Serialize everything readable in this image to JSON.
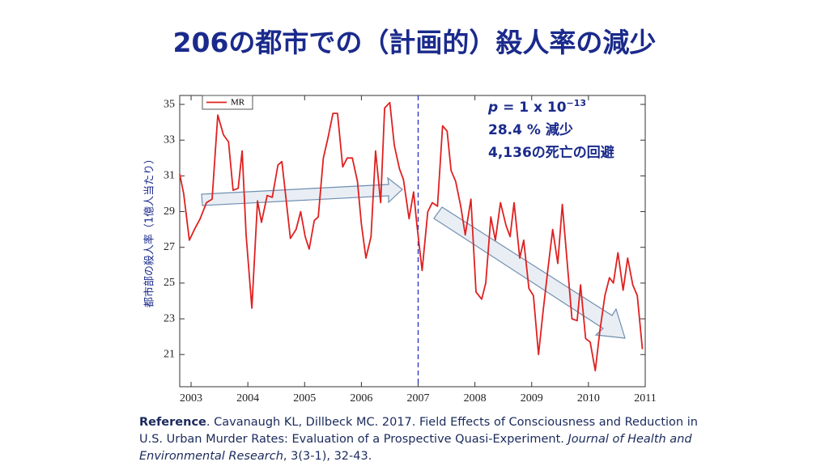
{
  "title": "206の都市での（計画的）殺人率の減少",
  "chart_data": {
    "type": "line",
    "y_label": "都市部の殺人率（1億人当たり）",
    "x": [
      2002.8,
      2002.87,
      2002.97,
      2003.06,
      2003.16,
      2003.27,
      2003.37,
      2003.47,
      2003.57,
      2003.66,
      2003.74,
      2003.83,
      2003.9,
      2003.97,
      2004.07,
      2004.17,
      2004.24,
      2004.34,
      2004.43,
      2004.53,
      2004.6,
      2004.67,
      2004.75,
      2004.85,
      2004.93,
      2005.01,
      2005.08,
      2005.17,
      2005.24,
      2005.33,
      2005.41,
      2005.5,
      2005.58,
      2005.67,
      2005.75,
      2005.84,
      2005.93,
      2006.0,
      2006.08,
      2006.17,
      2006.25,
      2006.34,
      2006.41,
      2006.5,
      2006.58,
      2006.67,
      2006.74,
      2006.84,
      2006.92,
      2006.98,
      2007.07,
      2007.17,
      2007.25,
      2007.34,
      2007.43,
      2007.51,
      2007.58,
      2007.66,
      2007.75,
      2007.83,
      2007.93,
      2008.02,
      2008.12,
      2008.19,
      2008.28,
      2008.36,
      2008.45,
      2008.55,
      2008.62,
      2008.69,
      2008.79,
      2008.86,
      2008.95,
      2009.03,
      2009.12,
      2009.2,
      2009.29,
      2009.37,
      2009.46,
      2009.54,
      2009.63,
      2009.71,
      2009.8,
      2009.86,
      2009.95,
      2010.03,
      2010.12,
      2010.2,
      2010.29,
      2010.37,
      2010.44,
      2010.52,
      2010.61,
      2010.69,
      2010.78,
      2010.86,
      2010.95
    ],
    "series": [
      {
        "name": "MR",
        "color": "#e02020",
        "values": [
          31.1,
          30.0,
          27.4,
          28.0,
          28.6,
          29.5,
          29.7,
          34.4,
          33.3,
          32.9,
          30.2,
          30.3,
          32.4,
          27.7,
          23.6,
          29.6,
          28.4,
          29.9,
          29.8,
          31.6,
          31.8,
          29.8,
          27.5,
          28.0,
          29.0,
          27.6,
          26.9,
          28.5,
          28.7,
          32.0,
          33.1,
          34.5,
          34.5,
          31.5,
          32.0,
          32.0,
          30.7,
          28.3,
          26.4,
          27.6,
          32.4,
          29.5,
          34.8,
          35.1,
          32.7,
          31.4,
          30.8,
          28.6,
          30.1,
          28.2,
          25.7,
          29.0,
          29.5,
          29.3,
          33.8,
          33.5,
          31.3,
          30.7,
          29.3,
          27.7,
          29.7,
          24.5,
          24.1,
          25.0,
          28.7,
          27.4,
          29.5,
          28.2,
          27.6,
          29.5,
          26.4,
          27.4,
          24.7,
          24.3,
          21.0,
          23.4,
          25.9,
          28.0,
          26.1,
          29.4,
          26.0,
          23.0,
          22.9,
          24.9,
          21.9,
          21.7,
          20.1,
          22.3,
          24.3,
          25.3,
          25.0,
          26.7,
          24.6,
          26.4,
          24.9,
          24.3,
          21.3
        ]
      }
    ],
    "xlim": [
      2002.8,
      2011
    ],
    "xticks": [
      2003,
      2004,
      2005,
      2006,
      2007,
      2008,
      2009,
      2010,
      2011
    ],
    "ylim": [
      19.2,
      35.5
    ],
    "yticks": [
      21,
      23,
      25,
      27,
      29,
      31,
      33,
      35
    ],
    "vline_x": 2007,
    "legend": "upper left",
    "grid": false,
    "annotation_lines": [
      [
        "p",
        " = 1 x 10",
        "−13"
      ],
      "28.4 % 減少",
      "4,136の死亡の回避"
    ]
  },
  "reference": {
    "label": "Reference",
    "text": ". Cavanaugh KL, Dillbeck MC. 2017. Field Effects of Consciousness and Reduction in U.S. Urban Murder Rates: Evaluation of a Prospective Quasi-Experiment. ",
    "journal": "Journal of Health and Environmental Research",
    "citation": ", 3(3-1), 32-43."
  }
}
